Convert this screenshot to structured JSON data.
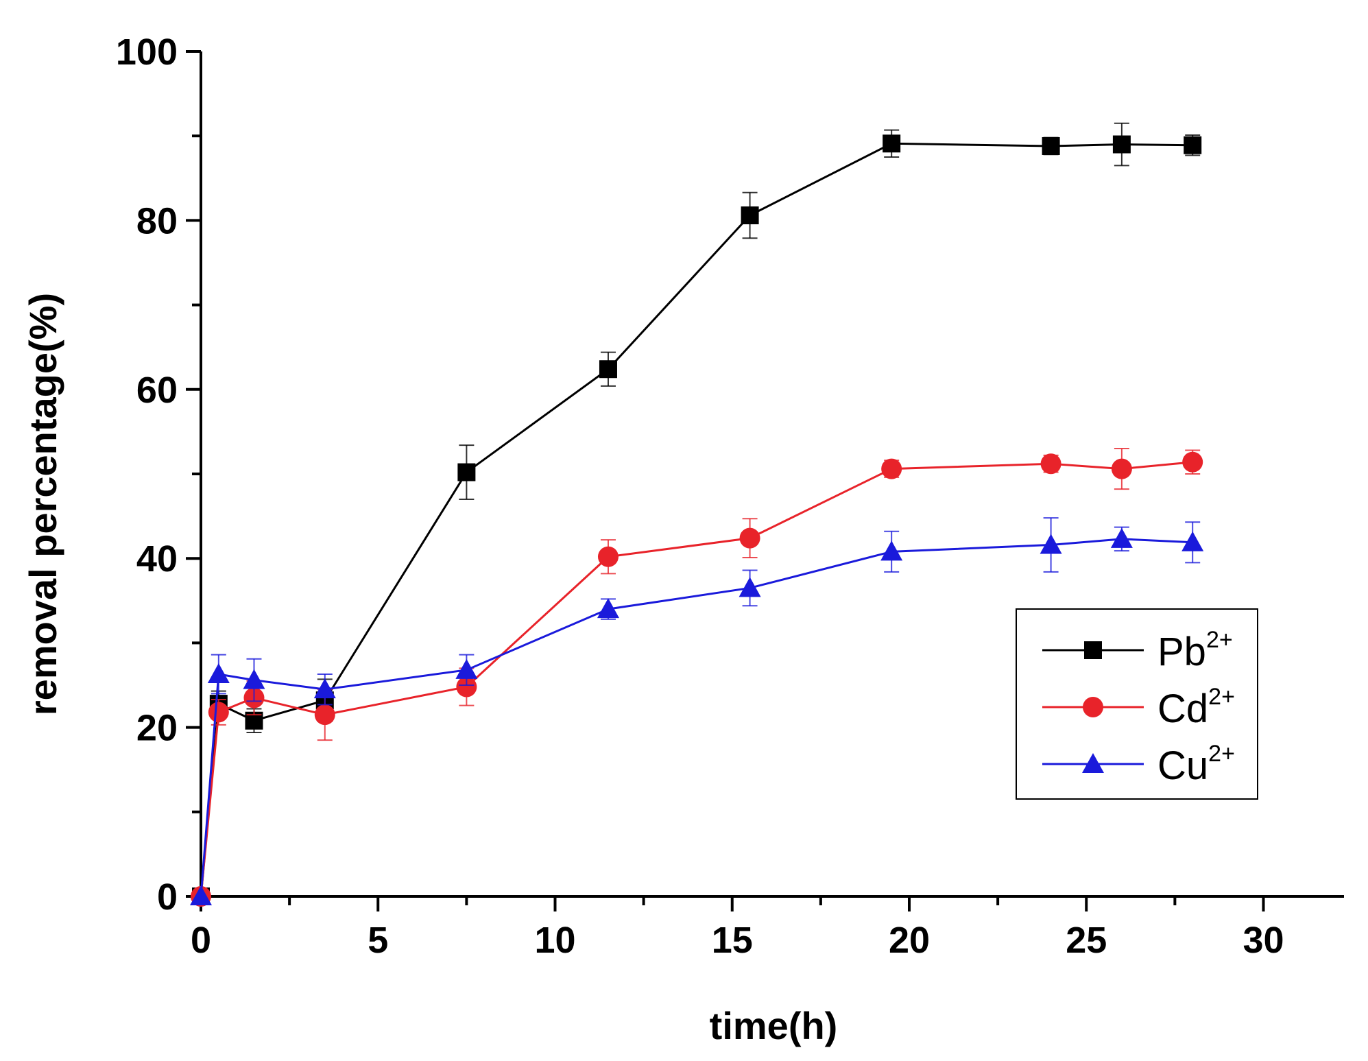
{
  "chart_data": {
    "type": "line",
    "xlabel": "time(h)",
    "ylabel": "removal percentage(%)",
    "xlim": [
      0,
      32
    ],
    "ylim": [
      0,
      100
    ],
    "xticks": [
      0,
      5,
      10,
      15,
      20,
      25,
      30
    ],
    "yticks": [
      0,
      20,
      40,
      60,
      80,
      100
    ],
    "grid": false,
    "legend_position": "right",
    "series": [
      {
        "name": "Pb",
        "sup": "2+",
        "color": "#000000",
        "marker": "square",
        "x": [
          0,
          0.5,
          1.5,
          3.5,
          7.5,
          11.5,
          15.5,
          19.5,
          24,
          26,
          28
        ],
        "y": [
          0,
          22.8,
          20.8,
          23.2,
          50.2,
          62.4,
          80.6,
          89.1,
          88.8,
          89.0,
          88.9
        ],
        "err": [
          0,
          1.5,
          1.4,
          2.5,
          3.2,
          2.0,
          2.7,
          1.6,
          1.0,
          2.5,
          1.2
        ]
      },
      {
        "name": "Cd",
        "sup": "2+",
        "color": "#e8232a",
        "marker": "circle",
        "x": [
          0,
          0.5,
          1.5,
          3.5,
          7.5,
          11.5,
          15.5,
          19.5,
          24,
          26,
          28
        ],
        "y": [
          0,
          21.8,
          23.5,
          21.5,
          24.8,
          40.2,
          42.4,
          50.6,
          51.2,
          50.6,
          51.4
        ],
        "err": [
          0,
          1.5,
          2.0,
          3.0,
          2.2,
          2.0,
          2.3,
          1.0,
          1.0,
          2.4,
          1.4
        ]
      },
      {
        "name": "Cu",
        "sup": "2+",
        "color": "#1a1adb",
        "marker": "triangle",
        "x": [
          0,
          0.5,
          1.5,
          3.5,
          7.5,
          11.5,
          15.5,
          19.5,
          24,
          26,
          28
        ],
        "y": [
          0,
          26.3,
          25.6,
          24.5,
          26.8,
          34.0,
          36.5,
          40.8,
          41.6,
          42.3,
          41.9
        ],
        "err": [
          0,
          2.3,
          2.5,
          1.8,
          1.8,
          1.2,
          2.1,
          2.4,
          3.2,
          1.4,
          2.4
        ]
      }
    ]
  }
}
